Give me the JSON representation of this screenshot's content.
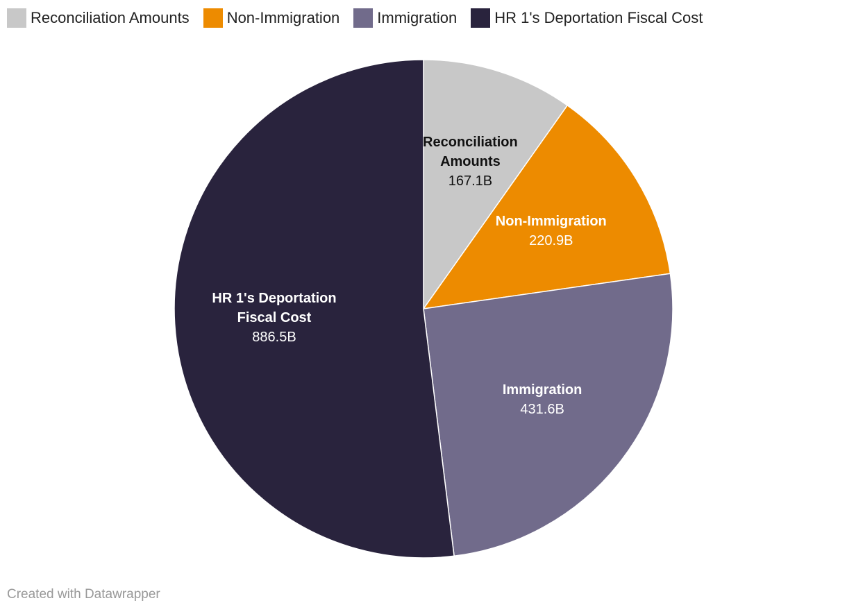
{
  "chart_data": {
    "type": "pie",
    "categories": [
      "Reconciliation Amounts",
      "Non-Immigration",
      "Immigration",
      "HR 1's Deportation Fiscal Cost"
    ],
    "values": [
      167.1,
      220.9,
      431.6,
      886.5
    ],
    "value_labels": [
      "167.1B",
      "220.9B",
      "431.6B",
      "886.5B"
    ],
    "colors": [
      "#c8c8c8",
      "#ed8b00",
      "#716b8b",
      "#29233d"
    ],
    "credit": "Created with Datawrapper"
  }
}
